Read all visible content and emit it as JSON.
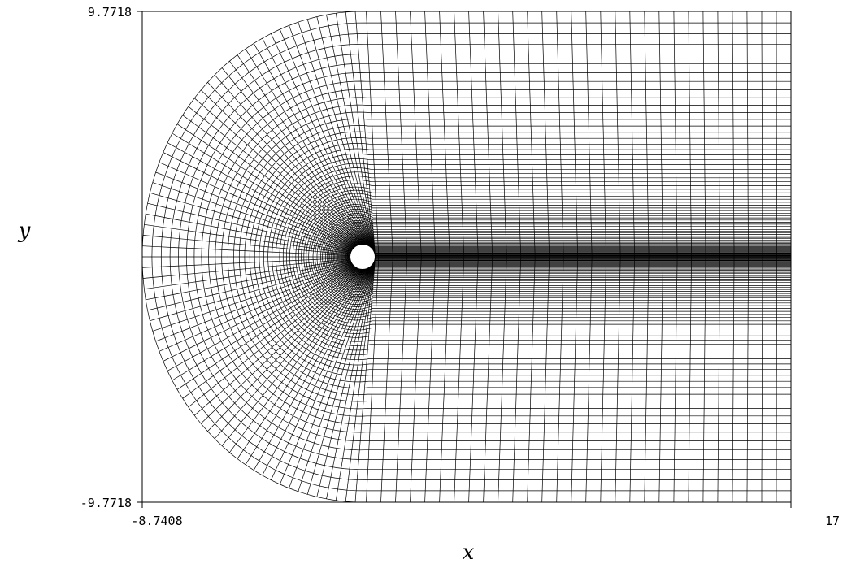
{
  "figure": {
    "kind": "structured C-grid mesh around circular cylinder",
    "line_color": "#000000",
    "background": "#ffffff",
    "body_fill": "#ffffff"
  },
  "axes": {
    "xlabel": "x",
    "ylabel": "y",
    "xlim": [
      -8.7408,
      17
    ],
    "ylim": [
      -9.7718,
      9.7718
    ],
    "x_ticks": [
      "-8.7408",
      "17"
    ],
    "y_ticks": [
      "9.7718",
      "-9.7718"
    ]
  },
  "mesh": {
    "body_center": [
      0,
      0
    ],
    "body_radius": 0.5,
    "outer_radius": 9.7718,
    "upstream_extent": -8.7408,
    "downstream_extent": 17,
    "radial_lines": 130,
    "wrap_lines": 70
  }
}
